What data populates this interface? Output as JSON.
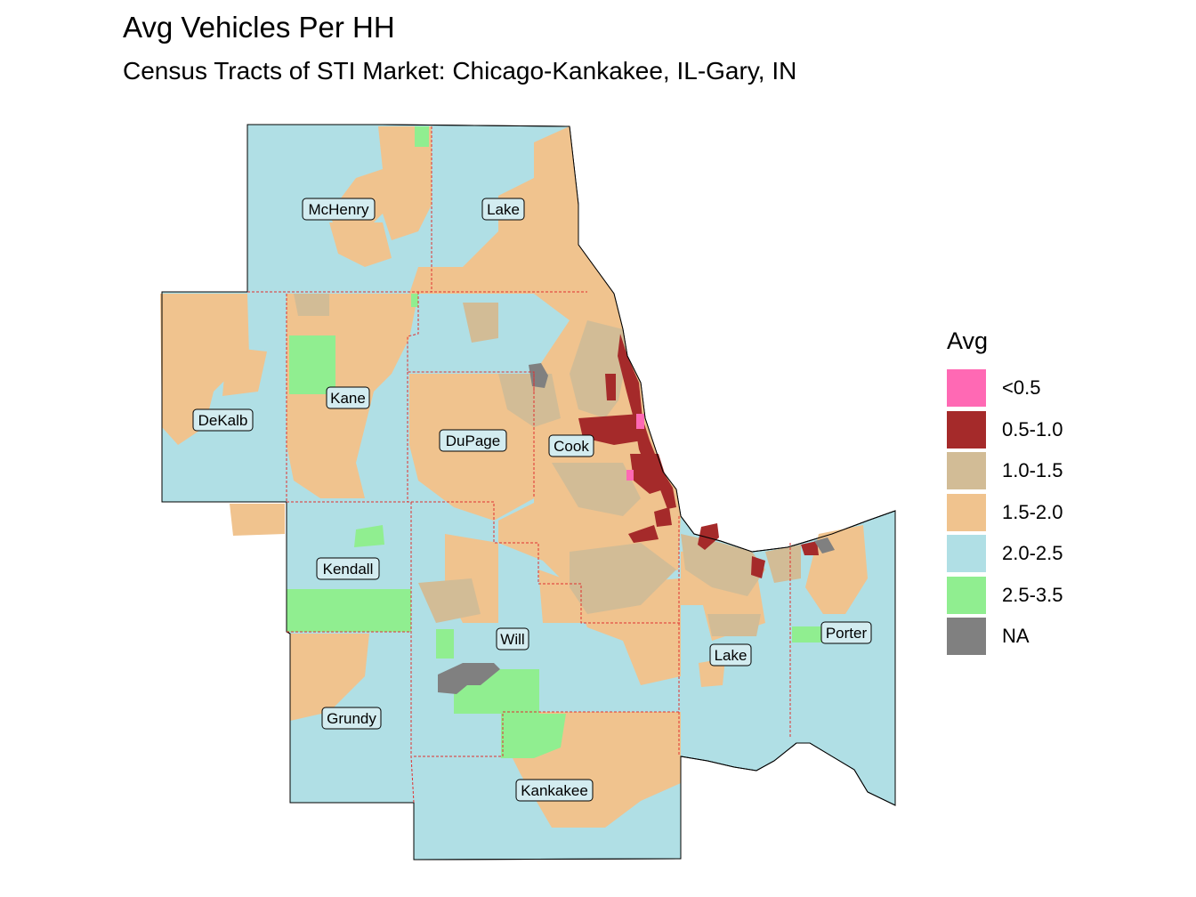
{
  "title": "Avg Vehicles Per HH",
  "subtitle": "Census Tracts of STI Market: Chicago-Kankakee, IL-Gary, IN",
  "legend": {
    "title": "Avg",
    "items": [
      {
        "label": "<0.5",
        "color": "#ff69b4"
      },
      {
        "label": "0.5-1.0",
        "color": "#a52a2a"
      },
      {
        "label": "1.0-1.5",
        "color": "#d2bc96"
      },
      {
        "label": "1.5-2.0",
        "color": "#f0c38e"
      },
      {
        "label": "2.0-2.5",
        "color": "#b0dfe5"
      },
      {
        "label": "2.5-3.5",
        "color": "#90ee90"
      },
      {
        "label": "NA",
        "color": "#808080"
      }
    ]
  },
  "counties": [
    {
      "name": "McHenry"
    },
    {
      "name": "Lake"
    },
    {
      "name": "DeKalb"
    },
    {
      "name": "Kane"
    },
    {
      "name": "DuPage"
    },
    {
      "name": "Cook"
    },
    {
      "name": "Kendall"
    },
    {
      "name": "Will"
    },
    {
      "name": "Lake"
    },
    {
      "name": "Porter"
    },
    {
      "name": "Grundy"
    },
    {
      "name": "Kankakee"
    }
  ]
}
